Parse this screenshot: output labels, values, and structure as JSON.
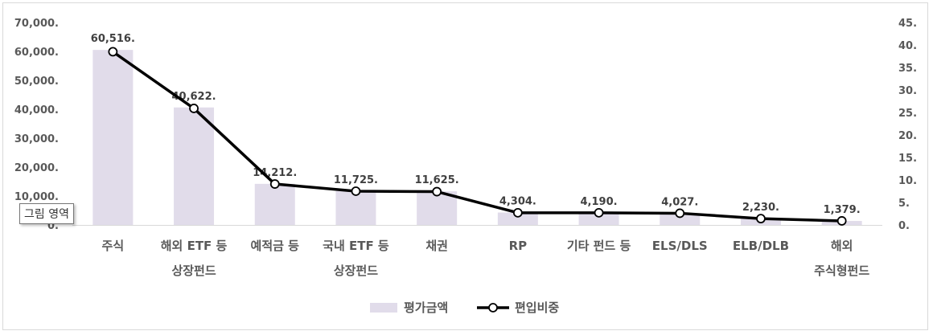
{
  "chart_data": {
    "type": "bar",
    "categories": [
      [
        "주식"
      ],
      [
        "해외 ETF 등",
        "상장펀드"
      ],
      [
        "예적금 등"
      ],
      [
        "국내 ETF 등",
        "상장펀드"
      ],
      [
        "채권"
      ],
      [
        "RP"
      ],
      [
        "기타 펀드 등"
      ],
      [
        "ELS/DLS"
      ],
      [
        "ELB/DLB"
      ],
      [
        "해외",
        "주식형펀드"
      ]
    ],
    "series": [
      {
        "name": "평가금액",
        "type": "bar",
        "axis": "left",
        "color": "#e1dcea",
        "values": [
          60516,
          40622,
          14212,
          11725,
          11625,
          4304,
          4190,
          4027,
          2230,
          1379
        ],
        "labels": [
          "60,516.",
          "40,622.",
          "14,212.",
          "11,725.",
          "11,625.",
          "4,304.",
          "4,190.",
          "4,027.",
          "2,230.",
          "1,379."
        ]
      },
      {
        "name": "편입비중",
        "type": "line",
        "axis": "right",
        "color": "#000000",
        "values": [
          38.5,
          25.9,
          9.1,
          7.5,
          7.4,
          2.7,
          2.7,
          2.6,
          1.4,
          0.9
        ]
      }
    ],
    "y_left": {
      "min": 0,
      "max": 70000,
      "ticks": [
        "70,000.",
        "60,000.",
        "50,000.",
        "40,000.",
        "30,000.",
        "20,000.",
        "10,000.",
        "0."
      ],
      "tick_values": [
        70000,
        60000,
        50000,
        40000,
        30000,
        20000,
        10000,
        0
      ]
    },
    "y_right": {
      "min": 0,
      "max": 45,
      "ticks": [
        "45.",
        "40.",
        "35.",
        "30.",
        "25.",
        "20.",
        "15.",
        "10.",
        "5.",
        "0."
      ],
      "tick_values": [
        45,
        40,
        35,
        30,
        25,
        20,
        15,
        10,
        5,
        0
      ]
    },
    "grid": false,
    "legend_position": "bottom"
  },
  "tooltip": "그림 영역"
}
